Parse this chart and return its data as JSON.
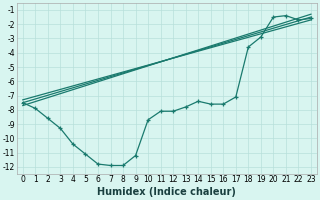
{
  "xlabel": "Humidex (Indice chaleur)",
  "background_color": "#d8f5f0",
  "grid_color": "#b8e0db",
  "line_color": "#1a7a6e",
  "xlim": [
    -0.5,
    23.5
  ],
  "ylim": [
    -12.5,
    -0.5
  ],
  "xticks": [
    0,
    1,
    2,
    3,
    4,
    5,
    6,
    7,
    8,
    9,
    10,
    11,
    12,
    13,
    14,
    15,
    16,
    17,
    18,
    19,
    20,
    21,
    22,
    23
  ],
  "yticks": [
    -1,
    -2,
    -3,
    -4,
    -5,
    -6,
    -7,
    -8,
    -9,
    -10,
    -11,
    -12
  ],
  "line1_x": [
    0,
    1,
    2,
    3,
    4,
    5,
    6,
    7,
    8,
    9,
    10,
    11,
    12,
    13,
    14,
    15,
    16,
    17,
    18,
    19,
    20,
    21,
    22,
    23
  ],
  "line1_y": [
    -7.5,
    -7.9,
    -8.6,
    -9.3,
    -10.4,
    -11.1,
    -11.8,
    -11.9,
    -11.9,
    -11.2,
    -8.7,
    -8.1,
    -8.1,
    -7.8,
    -7.4,
    -7.6,
    -7.6,
    -7.1,
    -3.6,
    -2.9,
    -1.5,
    -1.4,
    -1.7,
    -1.6
  ],
  "line2_x": [
    0,
    23
  ],
  "line2_y": [
    -7.5,
    -1.5
  ],
  "line3_x": [
    0,
    23
  ],
  "line3_y": [
    -7.7,
    -1.3
  ],
  "line4_x": [
    0,
    23
  ],
  "line4_y": [
    -7.3,
    -1.7
  ],
  "tick_fontsize": 5.5,
  "xlabel_fontsize": 7
}
